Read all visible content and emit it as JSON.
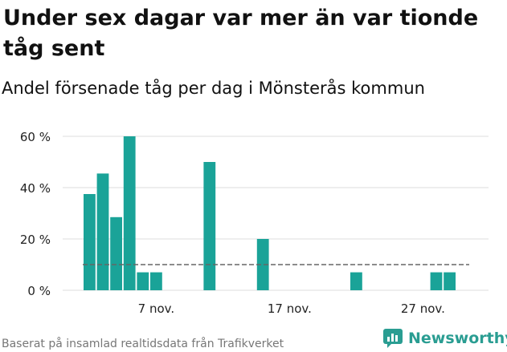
{
  "title": "Under sex dagar var mer än var tionde tåg sent",
  "subtitle": "Andel försenade tåg per dag i Mönsterås kommun",
  "source": "Baserat på insamlad realtidsdata från Trafikverket",
  "brand": "Newsworthy",
  "colors": {
    "bar": "#1aa398",
    "grid": "#dddddd",
    "threshold": "#666666",
    "brand": "#2a9d92"
  },
  "chart_data": {
    "type": "bar",
    "x": [
      "2 nov.",
      "3 nov.",
      "4 nov.",
      "5 nov.",
      "6 nov.",
      "7 nov.",
      "8 nov.",
      "9 nov.",
      "10 nov.",
      "11 nov.",
      "12 nov.",
      "13 nov.",
      "14 nov.",
      "15 nov.",
      "16 nov.",
      "17 nov.",
      "18 nov.",
      "19 nov.",
      "20 nov.",
      "21 nov.",
      "22 nov.",
      "23 nov.",
      "24 nov.",
      "25 nov.",
      "26 nov.",
      "27 nov.",
      "28 nov.",
      "29 nov."
    ],
    "values": [
      37.5,
      45.5,
      28.5,
      60,
      7,
      7,
      0,
      0,
      0,
      50,
      0,
      0,
      0,
      20,
      0,
      0,
      0,
      0,
      0,
      0,
      7,
      0,
      0,
      0,
      0,
      0,
      7,
      7
    ],
    "xticks": [
      "7 nov.",
      "17 nov.",
      "27 nov."
    ],
    "yticks": [
      "0 %",
      "20 %",
      "40 %",
      "60 %"
    ],
    "ylim": [
      0,
      65
    ],
    "reference_line": 10,
    "grid": true,
    "xlabel": "",
    "ylabel": ""
  }
}
